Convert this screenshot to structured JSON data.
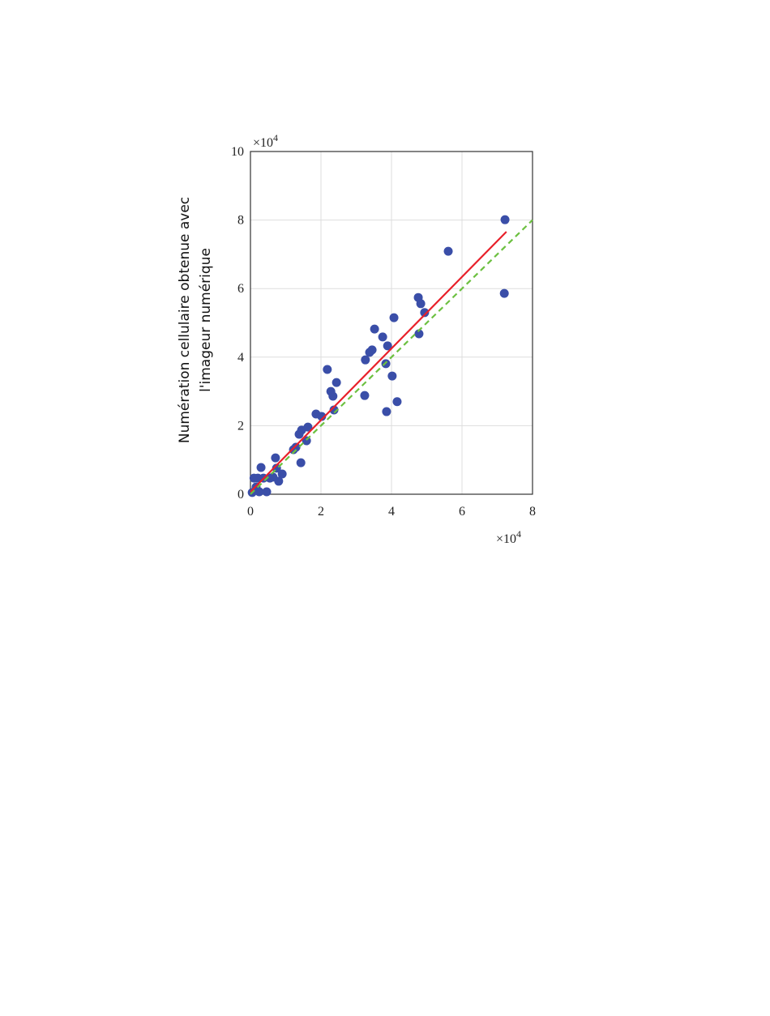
{
  "chart_data": {
    "type": "scatter",
    "y_label": [
      "Numération cellulaire obtenue avec",
      "l'imageur numérique"
    ],
    "x_multiplier": "×10",
    "x_exponent": 4,
    "y_multiplier": "×10",
    "y_exponent": 4,
    "xlim": [
      0,
      8
    ],
    "ylim": [
      0,
      10
    ],
    "xticks": [
      0,
      2,
      4,
      6,
      8
    ],
    "yticks": [
      0,
      2,
      4,
      6,
      8,
      10
    ],
    "grid": true,
    "series": [
      {
        "type": "scatter",
        "color": "#3a4ea8",
        "x": [
          0.05,
          0.1,
          0.16,
          0.21,
          0.25,
          0.3,
          0.37,
          0.46,
          0.55,
          0.64,
          0.71,
          0.74,
          0.8,
          0.9,
          1.22,
          1.29,
          1.38,
          1.45,
          1.43,
          1.59,
          1.63,
          1.86,
          2.02,
          2.18,
          2.28,
          2.34,
          2.37,
          2.44,
          3.24,
          3.26,
          3.38,
          3.45,
          3.52,
          3.75,
          3.84,
          3.89,
          3.86,
          4.02,
          4.07,
          4.16,
          4.76,
          4.83,
          4.78,
          4.94,
          5.61,
          7.22,
          7.2
        ],
        "values": [
          0.05,
          0.47,
          0.21,
          0.47,
          0.07,
          0.78,
          0.47,
          0.07,
          0.47,
          0.5,
          1.06,
          0.76,
          0.38,
          0.59,
          1.3,
          1.37,
          1.75,
          1.87,
          0.92,
          1.56,
          1.96,
          2.34,
          2.27,
          3.64,
          3.0,
          2.86,
          2.46,
          3.26,
          2.88,
          3.92,
          4.14,
          4.21,
          4.82,
          4.59,
          3.81,
          4.33,
          2.41,
          3.45,
          5.15,
          2.7,
          5.74,
          5.56,
          4.68,
          5.3,
          7.09,
          8.01,
          5.86
        ]
      },
      {
        "type": "line",
        "color": "#e8202a",
        "x": [
          0,
          7.26
        ],
        "values": [
          0.07,
          7.66
        ]
      },
      {
        "type": "line",
        "color": "#6cc040",
        "dashed": true,
        "x": [
          0,
          8
        ],
        "values": [
          0,
          8
        ]
      }
    ]
  }
}
